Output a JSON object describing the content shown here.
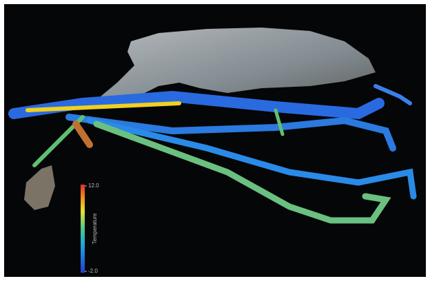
{
  "colorbar": {
    "label": "Temperature",
    "range": [
      -2,
      12
    ],
    "ticks": [
      {
        "value": 12,
        "label": "12.0"
      },
      {
        "value": -2,
        "label": "-2.0"
      }
    ]
  }
}
